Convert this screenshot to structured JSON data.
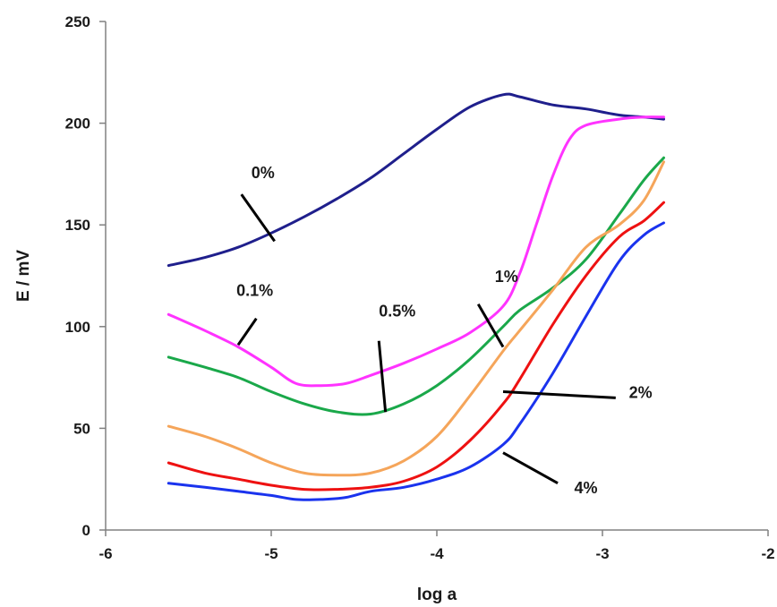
{
  "chart_data": {
    "type": "line",
    "title": "",
    "xlabel": "log a",
    "ylabel": "E / mV",
    "xlim": [
      -6,
      -2
    ],
    "ylim": [
      0,
      250
    ],
    "xticks": [
      "-6",
      "-5",
      "-4",
      "-3",
      "-2"
    ],
    "yticks": [
      "0",
      "50",
      "100",
      "150",
      "200",
      "250"
    ],
    "grid": false,
    "legend": "none",
    "series": [
      {
        "name": "0%",
        "color": "#1f1f8c",
        "x": [
          -5.62,
          -5.4,
          -5.2,
          -5.0,
          -4.8,
          -4.6,
          -4.4,
          -4.2,
          -4.0,
          -3.8,
          -3.6,
          -3.5,
          -3.3,
          -3.1,
          -2.9,
          -2.75,
          -2.63
        ],
        "y": [
          130,
          134,
          139,
          146,
          154,
          163,
          173,
          185,
          197,
          208,
          214,
          213,
          209,
          207,
          204,
          203,
          202
        ]
      },
      {
        "name": "0.1%",
        "color": "#ff33ff",
        "x": [
          -5.62,
          -5.4,
          -5.2,
          -5.0,
          -4.85,
          -4.7,
          -4.55,
          -4.4,
          -4.2,
          -4.0,
          -3.8,
          -3.6,
          -3.5,
          -3.4,
          -3.3,
          -3.2,
          -3.1,
          -2.9,
          -2.75,
          -2.63
        ],
        "y": [
          106,
          98,
          90,
          80,
          72,
          71,
          72,
          76,
          82,
          89,
          97,
          110,
          126,
          150,
          174,
          192,
          199,
          202,
          203,
          203
        ]
      },
      {
        "name": "0.5%",
        "color": "#1aa84a",
        "x": [
          -5.62,
          -5.4,
          -5.2,
          -5.0,
          -4.8,
          -4.6,
          -4.4,
          -4.2,
          -4.0,
          -3.8,
          -3.6,
          -3.5,
          -3.3,
          -3.1,
          -2.9,
          -2.75,
          -2.63
        ],
        "y": [
          85,
          80,
          75,
          68,
          62,
          58,
          57,
          62,
          71,
          84,
          100,
          108,
          119,
          133,
          155,
          172,
          183
        ]
      },
      {
        "name": "1%",
        "color": "#f5a55a",
        "x": [
          -5.62,
          -5.4,
          -5.2,
          -5.0,
          -4.8,
          -4.6,
          -4.4,
          -4.2,
          -4.0,
          -3.8,
          -3.6,
          -3.5,
          -3.3,
          -3.1,
          -2.9,
          -2.75,
          -2.63
        ],
        "y": [
          51,
          46,
          40,
          33,
          28,
          27,
          28,
          34,
          46,
          66,
          88,
          98,
          118,
          139,
          150,
          162,
          181
        ]
      },
      {
        "name": "2%",
        "color": "#ee1111",
        "x": [
          -5.62,
          -5.4,
          -5.2,
          -5.0,
          -4.8,
          -4.6,
          -4.4,
          -4.2,
          -4.0,
          -3.8,
          -3.6,
          -3.5,
          -3.3,
          -3.1,
          -2.9,
          -2.75,
          -2.63
        ],
        "y": [
          33,
          28,
          25,
          22,
          20,
          20,
          21,
          24,
          31,
          44,
          62,
          74,
          101,
          125,
          144,
          152,
          161
        ]
      },
      {
        "name": "4%",
        "color": "#1a33ee",
        "x": [
          -5.62,
          -5.4,
          -5.2,
          -5.0,
          -4.85,
          -4.7,
          -4.55,
          -4.4,
          -4.2,
          -4.0,
          -3.8,
          -3.6,
          -3.5,
          -3.3,
          -3.1,
          -2.9,
          -2.75,
          -2.63
        ],
        "y": [
          23,
          21,
          19,
          17,
          15,
          15,
          16,
          19,
          21,
          25,
          31,
          42,
          52,
          77,
          105,
          132,
          145,
          151
        ]
      }
    ]
  },
  "annotations": [
    {
      "series": "0%",
      "label": "0%",
      "label_at": [
        -5.12,
        173
      ],
      "leader_from": [
        -5.18,
        165
      ],
      "leader_to": [
        -4.98,
        142
      ]
    },
    {
      "series": "0.1%",
      "label": "0.1%",
      "label_at": [
        -5.21,
        115
      ],
      "leader_from": [
        -5.09,
        104
      ],
      "leader_to": [
        -5.2,
        91
      ]
    },
    {
      "series": "0.5%",
      "label": "0.5%",
      "label_at": [
        -4.35,
        105
      ],
      "leader_from": [
        -4.35,
        93
      ],
      "leader_to": [
        -4.31,
        58
      ]
    },
    {
      "series": "1%",
      "label": "1%",
      "label_at": [
        -3.65,
        122
      ],
      "leader_from": [
        -3.75,
        111
      ],
      "leader_to": [
        -3.6,
        90
      ]
    },
    {
      "series": "2%",
      "label": "2%",
      "label_at": [
        -2.84,
        65
      ],
      "leader_from": [
        -2.92,
        65
      ],
      "leader_to": [
        -3.6,
        68
      ]
    },
    {
      "series": "4%",
      "label": "4%",
      "label_at": [
        -3.17,
        18
      ],
      "leader_from": [
        -3.27,
        23
      ],
      "leader_to": [
        -3.6,
        38
      ]
    }
  ]
}
